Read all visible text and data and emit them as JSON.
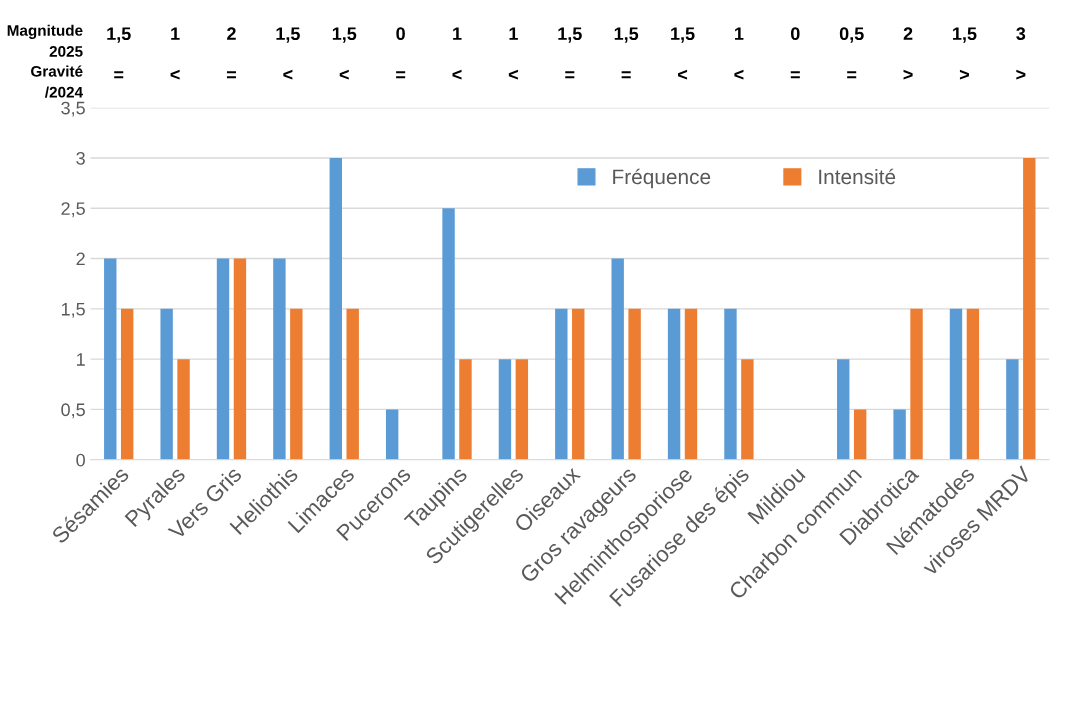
{
  "chart_data": {
    "type": "bar",
    "categories": [
      "Sésamies",
      "Pyrales",
      "Vers Gris",
      "Heliothis",
      "Limaces",
      "Pucerons",
      "Taupins",
      "Scutigerelles",
      "Oiseaux",
      "Gros ravageurs",
      "Helminthosporiose",
      "Fusariose des épis",
      "Mildiou",
      "Charbon commun",
      "Diabrotica",
      "Nématodes",
      "viroses MRDV"
    ],
    "series": [
      {
        "name": "Fréquence",
        "color": "#5b9bd5",
        "values": [
          2,
          1.5,
          2,
          2,
          3,
          0.5,
          2.5,
          1,
          1.5,
          2,
          1.5,
          1.5,
          0,
          1,
          0.5,
          1.5,
          1
        ]
      },
      {
        "name": "Intensité",
        "color": "#ed7d31",
        "values": [
          1.5,
          1,
          2,
          1.5,
          1.5,
          0,
          1,
          1,
          1.5,
          1.5,
          1.5,
          1,
          0,
          0.5,
          1.5,
          1.5,
          3
        ]
      }
    ],
    "ylim": [
      0,
      3.5
    ],
    "yticks": [
      0,
      {
        "value": 0.5,
        "label": "0,5"
      },
      1,
      {
        "value": 1.5,
        "label": "1,5"
      },
      2,
      {
        "value": 2.5,
        "label": "2,5"
      },
      3,
      {
        "value": 3.5,
        "label": "3,5"
      }
    ],
    "grid": "y",
    "legend": "top right",
    "annotations": [
      "Magnitude\n2025",
      "Gravité\n/2024",
      "1,5",
      "1",
      "2",
      "1,5",
      "1,5",
      "0",
      "1",
      "1",
      "1,5",
      "1,5",
      "1,5",
      "1",
      "0",
      "0,5",
      "2",
      "1,5",
      "3",
      "=",
      "<",
      "=",
      "<",
      "<",
      "=",
      "<",
      "<",
      "=",
      "=",
      "<",
      "<",
      "=",
      "=",
      ">",
      ">",
      ">"
    ]
  }
}
